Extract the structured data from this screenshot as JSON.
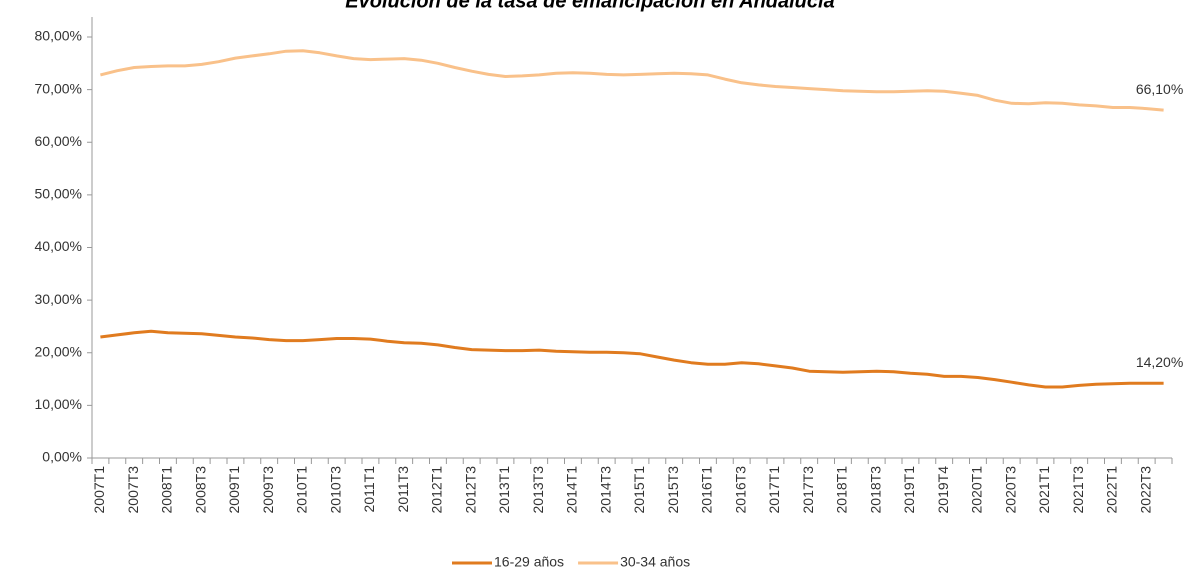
{
  "chart_data": {
    "type": "line",
    "title": "Evolución de la tasa de emancipación en Andalucía",
    "categories": [
      "2007T1",
      null,
      "2007T3",
      null,
      "2008T1",
      null,
      "2008T3",
      null,
      "2009T1",
      null,
      "2009T3",
      null,
      "2010T1",
      null,
      "2010T3",
      null,
      "2011T1",
      null,
      "2011T3",
      null,
      "2012T1",
      null,
      "2012T3",
      null,
      "2013T1",
      null,
      "2013T3",
      null,
      "2014T1",
      null,
      "2014T3",
      null,
      "2015T1",
      null,
      "2015T3",
      null,
      "2016T1",
      null,
      "2016T3",
      null,
      "2017T1",
      null,
      "2017T3",
      null,
      "2018T1",
      null,
      "2018T3",
      null,
      "2019T1",
      null,
      "2019T4",
      null,
      "2020T1",
      null,
      "2020T3",
      null,
      "2021T1",
      null,
      "2021T3",
      null,
      "2022T1",
      null,
      "2022T3",
      null
    ],
    "series": [
      {
        "name": "16-29 años",
        "color": "#e07b1f",
        "values": [
          23.0,
          23.4,
          23.8,
          24.1,
          23.8,
          23.7,
          23.6,
          23.3,
          23.0,
          22.8,
          22.5,
          22.3,
          22.3,
          22.5,
          22.7,
          22.7,
          22.6,
          22.2,
          21.9,
          21.8,
          21.5,
          21.0,
          20.6,
          20.5,
          20.4,
          20.4,
          20.5,
          20.3,
          20.2,
          20.1,
          20.1,
          20.0,
          19.8,
          19.2,
          18.6,
          18.1,
          17.8,
          17.8,
          18.1,
          17.9,
          17.5,
          17.1,
          16.5,
          16.4,
          16.3,
          16.4,
          16.5,
          16.4,
          16.1,
          15.9,
          15.5,
          15.5,
          15.3,
          14.9,
          14.4,
          13.9,
          13.5,
          13.5,
          13.8,
          14.0,
          14.1,
          14.2,
          14.2,
          14.2
        ],
        "value_labels": {
          "63": "14,20%"
        }
      },
      {
        "name": "30-34 años",
        "color": "#f9c18a",
        "values": [
          72.8,
          73.6,
          74.2,
          74.4,
          74.5,
          74.5,
          74.8,
          75.3,
          76.0,
          76.4,
          76.8,
          77.3,
          77.4,
          77.0,
          76.4,
          75.9,
          75.7,
          75.8,
          75.9,
          75.6,
          75.0,
          74.2,
          73.5,
          72.9,
          72.5,
          72.6,
          72.8,
          73.1,
          73.2,
          73.1,
          72.9,
          72.8,
          72.9,
          73.0,
          73.1,
          73.0,
          72.8,
          72.0,
          71.3,
          70.9,
          70.6,
          70.4,
          70.2,
          70.0,
          69.8,
          69.7,
          69.6,
          69.6,
          69.7,
          69.8,
          69.7,
          69.3,
          68.9,
          68.0,
          67.4,
          67.3,
          67.5,
          67.4,
          67.1,
          66.9,
          66.6,
          66.6,
          66.4,
          66.1
        ],
        "value_labels": {
          "63": "66,10%"
        }
      }
    ],
    "ylim": [
      0,
      80
    ],
    "yticks": [
      {
        "value": 0,
        "label": "0,00%"
      },
      {
        "value": 10,
        "label": "10,00%"
      },
      {
        "value": 20,
        "label": "20,00%"
      },
      {
        "value": 30,
        "label": "30,00%"
      },
      {
        "value": 40,
        "label": "40,00%"
      },
      {
        "value": 50,
        "label": "50,00%"
      },
      {
        "value": 60,
        "label": "60,00%"
      },
      {
        "value": 70,
        "label": "70,00%"
      },
      {
        "value": 80,
        "label": "80,00%"
      }
    ],
    "grid": false,
    "legend": "bottom"
  }
}
